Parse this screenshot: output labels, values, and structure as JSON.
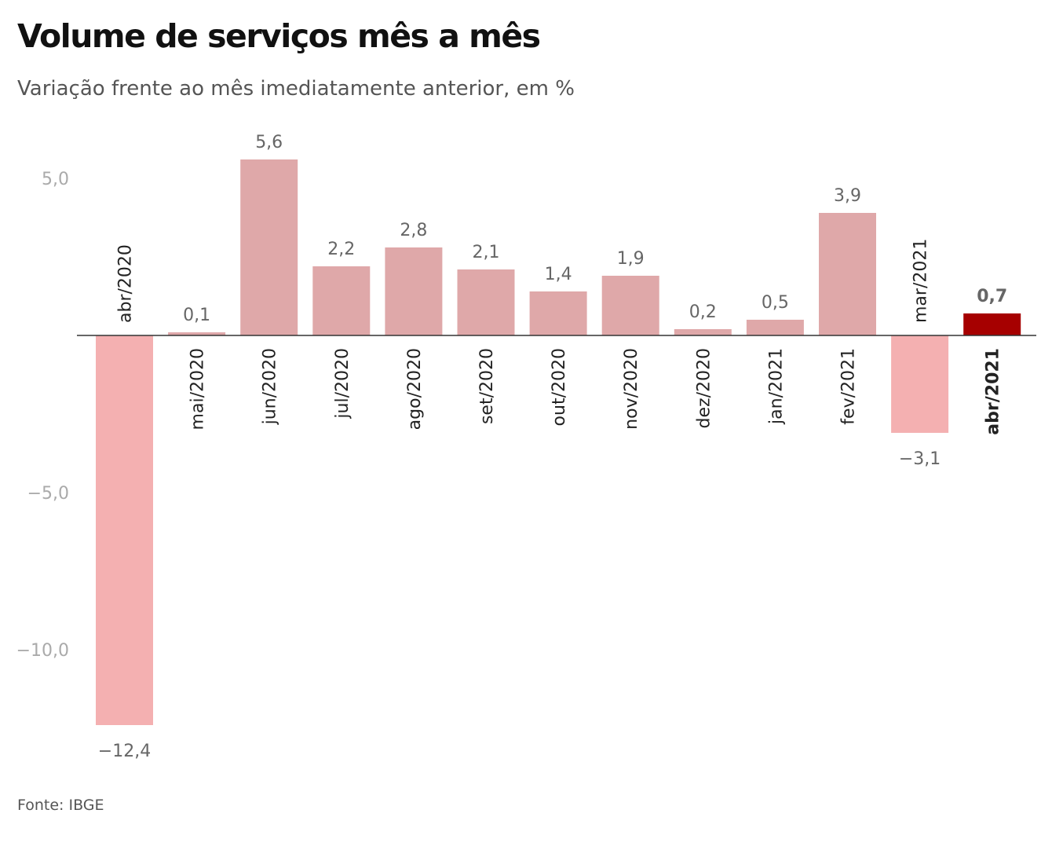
{
  "chart_data": {
    "type": "bar",
    "title": "Volume de serviços mês a mês",
    "subtitle": "Variação frente ao mês imediatamente anterior, em %",
    "source": "Fonte: IBGE",
    "categories": [
      "abr/2020",
      "mai/2020",
      "jun/2020",
      "jul/2020",
      "ago/2020",
      "set/2020",
      "out/2020",
      "nov/2020",
      "dez/2020",
      "jan/2021",
      "fev/2021",
      "mar/2021",
      "abr/2021"
    ],
    "values": [
      -12.4,
      0.1,
      5.6,
      2.2,
      2.8,
      2.1,
      1.4,
      1.9,
      0.2,
      0.5,
      3.9,
      -3.1,
      0.7
    ],
    "value_labels": [
      "−12,4",
      "0,1",
      "5,6",
      "2,2",
      "2,8",
      "2,1",
      "1,4",
      "1,9",
      "0,2",
      "0,5",
      "3,9",
      "−3,1",
      "0,7"
    ],
    "highlight": "abr/2021",
    "yticks": [
      5,
      -5,
      -10
    ],
    "ytick_labels": [
      "5,0",
      "−5,0",
      "−10,0"
    ],
    "ylim": [
      -12.4,
      5.6
    ],
    "colors": {
      "positive": "#dfa8a9",
      "negative": "#f4b0b1",
      "highlight": "#a60000",
      "axis": "#333333"
    }
  }
}
